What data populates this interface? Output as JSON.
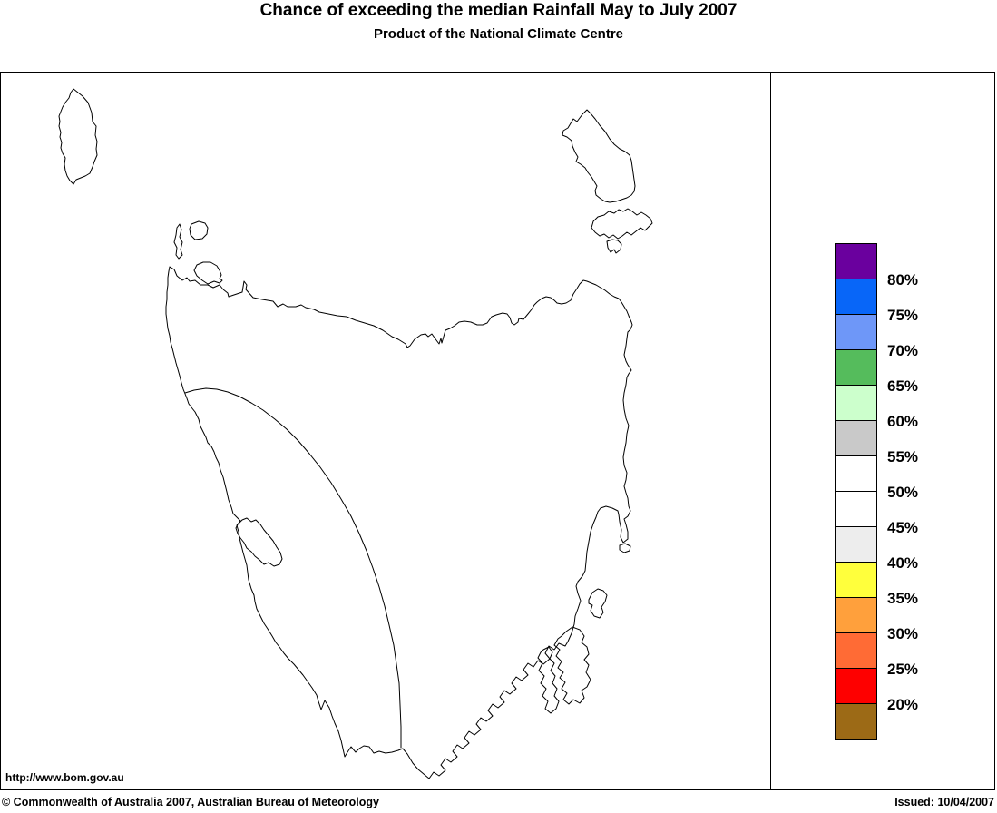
{
  "header": {
    "title": "Chance of exceeding the median Rainfall May to July 2007",
    "subtitle": "Product of the National Climate Centre"
  },
  "map": {
    "url_label": "http://www.bom.gov.au"
  },
  "legend": {
    "colors": [
      "#6A009E",
      "#0866F8",
      "#6E97F8",
      "#55BC5C",
      "#CCFFCC",
      "#C9C9C9",
      "#FFFFFF",
      "#FFFFFF",
      "#EDEDED",
      "#FFFF3C",
      "#FFA03C",
      "#FF6B35",
      "#FE0000",
      "#9C6A16"
    ],
    "labels": [
      "80%",
      "75%",
      "70%",
      "65%",
      "60%",
      "55%",
      "50%",
      "45%",
      "40%",
      "35%",
      "30%",
      "25%",
      "20%"
    ]
  },
  "footer": {
    "copyright": "© Commonwealth of Australia 2007, Australian Bureau of Meteorology",
    "issued": "Issued: 10/04/2007"
  }
}
